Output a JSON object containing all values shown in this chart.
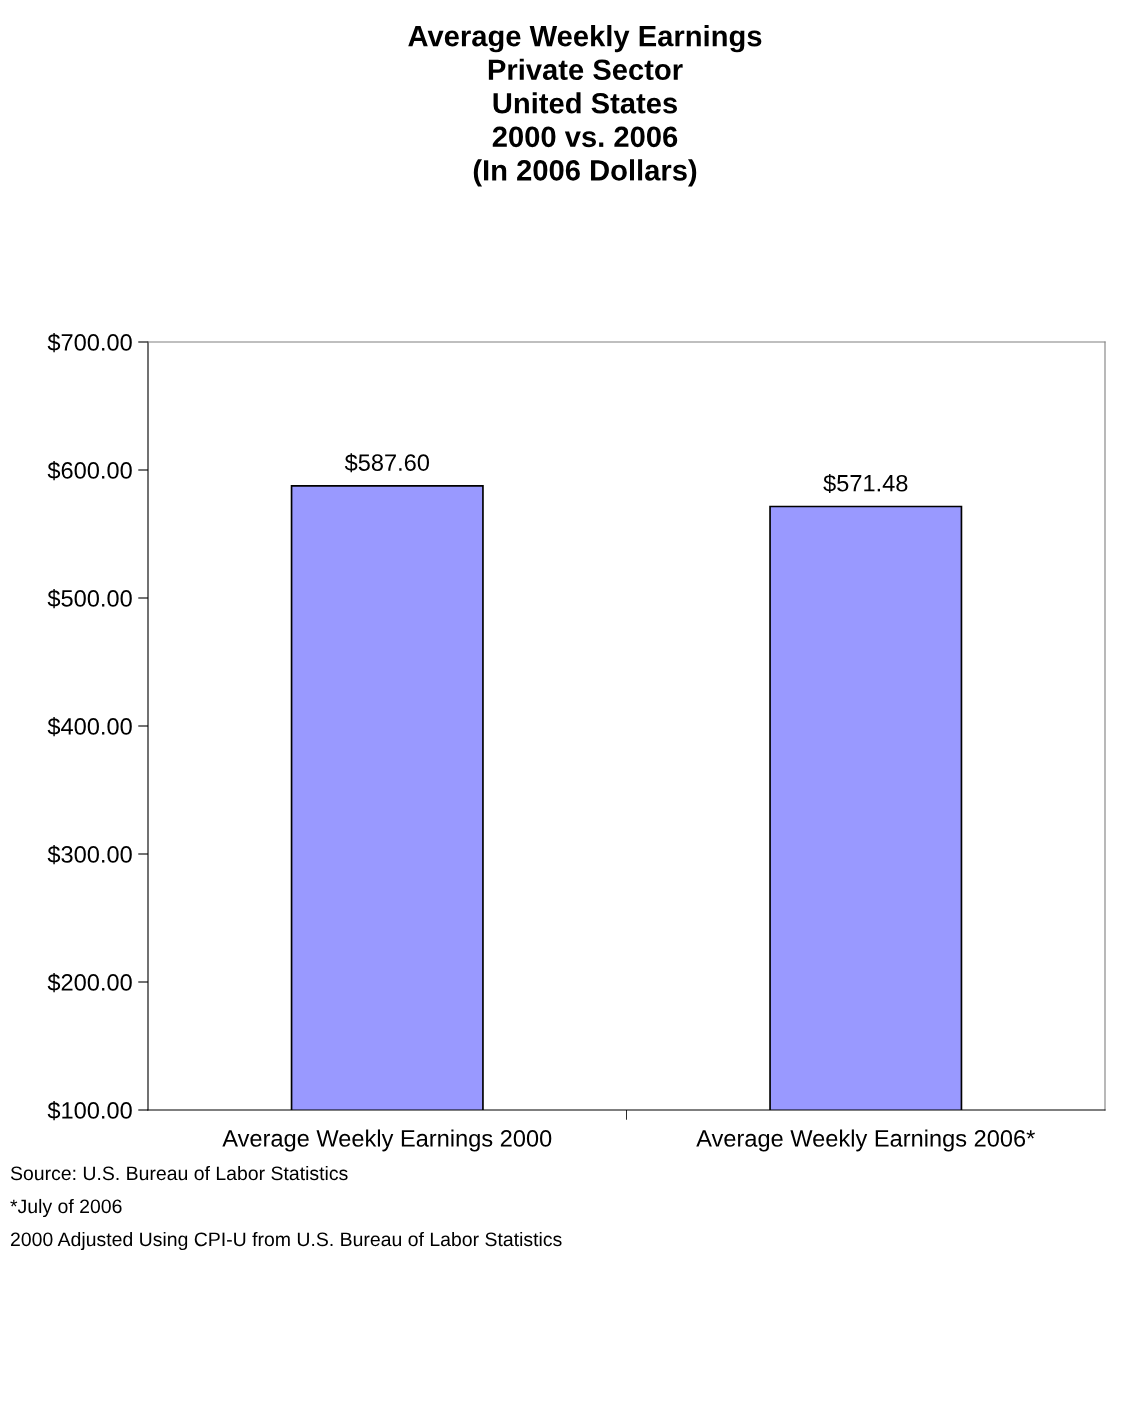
{
  "chart_data": {
    "type": "bar",
    "title": "Average Weekly Earnings\nPrivate Sector\nUnited States\n2000 vs. 2006\n(In 2006 Dollars)",
    "categories": [
      "Average Weekly Earnings 2000",
      "Average Weekly Earnings 2006*"
    ],
    "values": [
      587.6,
      571.48
    ],
    "value_labels": [
      "$587.60",
      "$571.48"
    ],
    "color": "#9999ff",
    "ylim": [
      100,
      700
    ],
    "yticks": [
      {
        "value": 100,
        "label": "$100.00"
      },
      {
        "value": 200,
        "label": "$200.00"
      },
      {
        "value": 300,
        "label": "$300.00"
      },
      {
        "value": 400,
        "label": "$400.00"
      },
      {
        "value": 500,
        "label": "$500.00"
      },
      {
        "value": 600,
        "label": "$600.00"
      },
      {
        "value": 700,
        "label": "$700.00"
      }
    ],
    "grid": false,
    "legend": false,
    "annotations": [
      "Source: U.S. Bureau of Labor Statistics",
      "*July of 2006",
      "2000 Adjusted Using CPI-U from U.S. Bureau of Labor Statistics"
    ]
  }
}
